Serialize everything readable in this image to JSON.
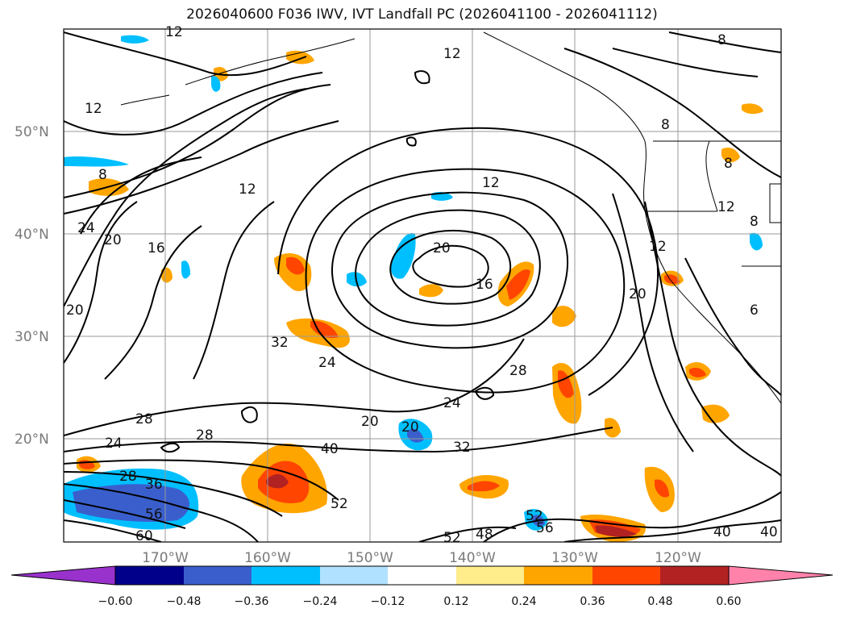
{
  "title": "2026040600 F036 IWV, IVT Landfall PC (2026041100 - 2026041112)",
  "lat_labels": [
    "50°N",
    "40°N",
    "30°N",
    "20°N"
  ],
  "lon_labels": [
    "170°W",
    "160°W",
    "150°W",
    "140°W",
    "130°W",
    "120°W"
  ],
  "colorbar": {
    "ticks": [
      "−0.60",
      "−0.48",
      "−0.36",
      "−0.24",
      "−0.12",
      "0.12",
      "0.24",
      "0.36",
      "0.48",
      "0.60"
    ],
    "colors": [
      "#9932cc",
      "#00008b",
      "#3a5fcd",
      "#00bfff",
      "#b0e2ff",
      "#ffffff",
      "#ffec8b",
      "#ffa500",
      "#ff4500",
      "#b22222",
      "#ff82ab"
    ]
  },
  "contour_labels": [
    "12",
    "12",
    "8",
    "8",
    "12",
    "24",
    "20",
    "16",
    "12",
    "20",
    "16",
    "20",
    "12",
    "8",
    "12",
    "20",
    "32",
    "24",
    "28",
    "24",
    "20",
    "20",
    "28",
    "28",
    "32",
    "24",
    "28",
    "36",
    "56",
    "60",
    "40",
    "52",
    "52",
    "56",
    "48",
    "52",
    "40",
    "40",
    "12",
    "8",
    "8",
    "6"
  ]
}
